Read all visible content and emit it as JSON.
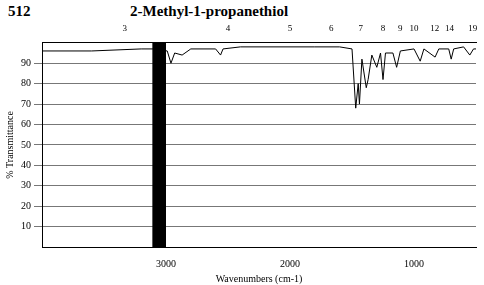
{
  "chart_data": {
    "type": "line",
    "number": "512",
    "title": "2-Methyl-1-propanethiol",
    "x_label": "Wavenumbers (cm-1)",
    "y_label": "% Transmittance",
    "x": [
      4000,
      3600,
      3200,
      3100,
      2990,
      2960,
      2930,
      2870,
      2800,
      2600,
      2560,
      2540,
      2400,
      2000,
      1800,
      1600,
      1500,
      1470,
      1450,
      1440,
      1420,
      1385,
      1370,
      1340,
      1300,
      1270,
      1250,
      1230,
      1170,
      1140,
      1110,
      1000,
      950,
      920,
      830,
      800,
      720,
      700,
      680,
      600,
      550,
      520,
      500
    ],
    "values": [
      96,
      96,
      97,
      97,
      96,
      90,
      95,
      94,
      97,
      97,
      94,
      97,
      98,
      98,
      98,
      98,
      97,
      68,
      80,
      70,
      92,
      78,
      82,
      94,
      88,
      95,
      82,
      95,
      95,
      88,
      96,
      97,
      91,
      97,
      93,
      97,
      97,
      92,
      97,
      98,
      94,
      97,
      97
    ],
    "color": "#000000",
    "xlim": [
      4000,
      500
    ],
    "xticks": [
      3000,
      2000,
      1000
    ],
    "x2ticks": [
      {
        "value": 3333.3,
        "label": "3"
      },
      {
        "value": 2500,
        "label": "4"
      },
      {
        "value": 2000,
        "label": "5"
      },
      {
        "value": 1666.7,
        "label": "6"
      },
      {
        "value": 1428.6,
        "label": "7"
      },
      {
        "value": 1250,
        "label": "8"
      },
      {
        "value": 1111.1,
        "label": "9"
      },
      {
        "value": 1000,
        "label": "10"
      },
      {
        "value": 833.3,
        "label": "12"
      },
      {
        "value": 714.3,
        "label": "14"
      },
      {
        "value": 526.3,
        "label": "19"
      }
    ],
    "ylim": [
      0,
      100
    ],
    "yticks": [
      10,
      20,
      30,
      40,
      50,
      60,
      70,
      80,
      90
    ],
    "grid": true,
    "masked_range": [
      3000,
      3110
    ]
  }
}
